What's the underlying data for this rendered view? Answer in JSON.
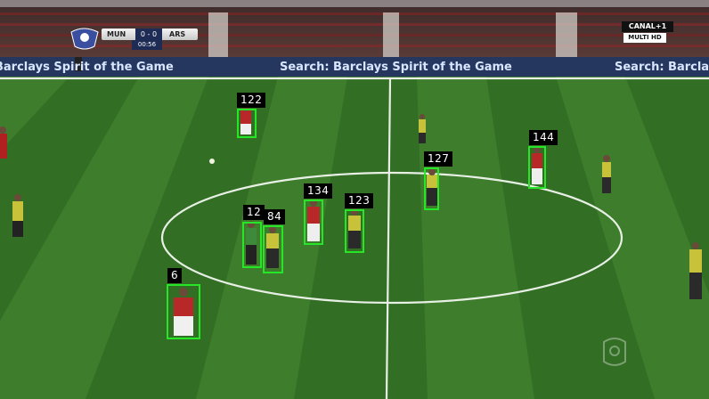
{
  "scene": {
    "scoreboard": {
      "home": "MUN",
      "score": "0 - 0",
      "away": "ARS",
      "clock": "00:56"
    },
    "broadcaster": {
      "channel": "CANAL+1",
      "sub": "MULTI HD"
    },
    "advertising_boards": [
      "Barclays Spirit of the Game",
      "Search: Barclays Spirit of the Game",
      "Search: Barcla"
    ],
    "detections": [
      {
        "id": "122"
      },
      {
        "id": "144"
      },
      {
        "id": "127"
      },
      {
        "id": "134"
      },
      {
        "id": "123"
      },
      {
        "id": "12"
      },
      {
        "id": "84"
      },
      {
        "id": "6"
      }
    ],
    "colors": {
      "box": "#27e527",
      "label_bg": "#000000",
      "label_text": "#ffffff",
      "grass_dark": "#2f6a23",
      "grass_light": "#3f7f2c"
    }
  }
}
